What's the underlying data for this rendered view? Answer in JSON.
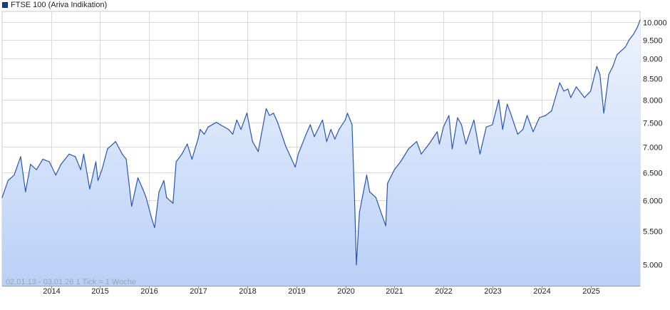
{
  "legend": {
    "label": "FTSE 100 (Ariva Indikation)",
    "color": "#1a3f8f"
  },
  "footer_note": "02.01.13 - 03.01.26    1 Tick = 1 Woche",
  "chart_data": {
    "type": "area",
    "title": "",
    "xlabel": "",
    "ylabel": "",
    "y_scale": "log",
    "ylim": [
      4700,
      10300
    ],
    "xlim": [
      "2013-01-02",
      "2026-01-03"
    ],
    "grid": true,
    "legend_position": "top-left",
    "colors": {
      "line": "#2856b6",
      "fill_top": "#eef4fe",
      "fill_bottom": "#b9d0f6"
    },
    "x_ticks": [
      {
        "date": "2014-01-01",
        "label": "2014"
      },
      {
        "date": "2015-01-01",
        "label": "2015"
      },
      {
        "date": "2016-01-01",
        "label": "2016"
      },
      {
        "date": "2017-01-01",
        "label": "2017"
      },
      {
        "date": "2018-01-01",
        "label": "2018"
      },
      {
        "date": "2019-01-01",
        "label": "2019"
      },
      {
        "date": "2020-01-01",
        "label": "2020"
      },
      {
        "date": "2021-01-01",
        "label": "2021"
      },
      {
        "date": "2022-01-01",
        "label": "2022"
      },
      {
        "date": "2023-01-01",
        "label": "2023"
      },
      {
        "date": "2024-01-01",
        "label": "2024"
      },
      {
        "date": "2025-01-01",
        "label": "2025"
      }
    ],
    "y_ticks": [
      {
        "value": 5000,
        "label": "5.000"
      },
      {
        "value": 5500,
        "label": "5.500"
      },
      {
        "value": 6000,
        "label": "6.000"
      },
      {
        "value": 6500,
        "label": "6.500"
      },
      {
        "value": 7000,
        "label": "7.000"
      },
      {
        "value": 7500,
        "label": "7.500"
      },
      {
        "value": 8000,
        "label": "8.000"
      },
      {
        "value": 8500,
        "label": "8.500"
      },
      {
        "value": 9000,
        "label": "9.000"
      },
      {
        "value": 9500,
        "label": "9.500"
      },
      {
        "value": 10000,
        "label": "10.000"
      }
    ],
    "series": [
      {
        "points": [
          [
            "2013-01-02",
            6050
          ],
          [
            "2013-02-15",
            6350
          ],
          [
            "2013-04-01",
            6450
          ],
          [
            "2013-05-20",
            6800
          ],
          [
            "2013-06-25",
            6150
          ],
          [
            "2013-08-01",
            6650
          ],
          [
            "2013-09-15",
            6550
          ],
          [
            "2013-11-01",
            6750
          ],
          [
            "2013-12-20",
            6700
          ],
          [
            "2014-02-05",
            6450
          ],
          [
            "2014-03-15",
            6650
          ],
          [
            "2014-05-15",
            6850
          ],
          [
            "2014-07-01",
            6800
          ],
          [
            "2014-08-10",
            6550
          ],
          [
            "2014-09-01",
            6850
          ],
          [
            "2014-10-16",
            6200
          ],
          [
            "2014-12-01",
            6700
          ],
          [
            "2014-12-16",
            6350
          ],
          [
            "2015-01-15",
            6550
          ],
          [
            "2015-02-25",
            6950
          ],
          [
            "2015-04-27",
            7100
          ],
          [
            "2015-06-15",
            6850
          ],
          [
            "2015-07-15",
            6750
          ],
          [
            "2015-08-24",
            5900
          ],
          [
            "2015-10-10",
            6400
          ],
          [
            "2015-11-15",
            6200
          ],
          [
            "2015-12-10",
            6050
          ],
          [
            "2016-01-20",
            5700
          ],
          [
            "2016-02-11",
            5550
          ],
          [
            "2016-03-15",
            6150
          ],
          [
            "2016-04-20",
            6350
          ],
          [
            "2016-05-10",
            6050
          ],
          [
            "2016-06-27",
            5950
          ],
          [
            "2016-07-20",
            6700
          ],
          [
            "2016-09-01",
            6850
          ],
          [
            "2016-10-11",
            7050
          ],
          [
            "2016-11-15",
            6750
          ],
          [
            "2016-12-30",
            7150
          ],
          [
            "2017-01-15",
            7350
          ],
          [
            "2017-02-15",
            7250
          ],
          [
            "2017-03-15",
            7400
          ],
          [
            "2017-05-15",
            7500
          ],
          [
            "2017-06-15",
            7450
          ],
          [
            "2017-08-15",
            7350
          ],
          [
            "2017-09-15",
            7250
          ],
          [
            "2017-10-15",
            7550
          ],
          [
            "2017-11-15",
            7350
          ],
          [
            "2017-12-29",
            7700
          ],
          [
            "2018-02-09",
            7100
          ],
          [
            "2018-03-23",
            6900
          ],
          [
            "2018-05-22",
            7800
          ],
          [
            "2018-06-15",
            7650
          ],
          [
            "2018-07-15",
            7700
          ],
          [
            "2018-08-15",
            7500
          ],
          [
            "2018-10-15",
            7000
          ],
          [
            "2018-12-24",
            6600
          ],
          [
            "2019-01-15",
            6850
          ],
          [
            "2019-03-15",
            7250
          ],
          [
            "2019-04-15",
            7450
          ],
          [
            "2019-05-15",
            7200
          ],
          [
            "2019-07-15",
            7550
          ],
          [
            "2019-08-15",
            7100
          ],
          [
            "2019-09-15",
            7350
          ],
          [
            "2019-10-15",
            7150
          ],
          [
            "2019-11-15",
            7350
          ],
          [
            "2019-12-31",
            7550
          ],
          [
            "2020-01-17",
            7700
          ],
          [
            "2020-02-20",
            7450
          ],
          [
            "2020-03-10",
            6000
          ],
          [
            "2020-03-23",
            4990
          ],
          [
            "2020-04-15",
            5800
          ],
          [
            "2020-06-08",
            6450
          ],
          [
            "2020-06-30",
            6150
          ],
          [
            "2020-08-15",
            6050
          ],
          [
            "2020-10-28",
            5580
          ],
          [
            "2020-11-10",
            6300
          ],
          [
            "2020-12-31",
            6550
          ],
          [
            "2021-02-15",
            6700
          ],
          [
            "2021-04-15",
            6950
          ],
          [
            "2021-06-15",
            7100
          ],
          [
            "2021-07-19",
            6850
          ],
          [
            "2021-09-15",
            7050
          ],
          [
            "2021-11-15",
            7300
          ],
          [
            "2021-12-01",
            7050
          ],
          [
            "2021-12-31",
            7400
          ],
          [
            "2022-02-10",
            7650
          ],
          [
            "2022-03-07",
            6950
          ],
          [
            "2022-04-15",
            7600
          ],
          [
            "2022-05-15",
            7450
          ],
          [
            "2022-06-16",
            7050
          ],
          [
            "2022-08-15",
            7550
          ],
          [
            "2022-09-29",
            6850
          ],
          [
            "2022-11-15",
            7400
          ],
          [
            "2022-12-31",
            7450
          ],
          [
            "2023-02-16",
            8000
          ],
          [
            "2023-03-17",
            7350
          ],
          [
            "2023-04-20",
            7900
          ],
          [
            "2023-05-15",
            7700
          ],
          [
            "2023-07-07",
            7250
          ],
          [
            "2023-08-15",
            7350
          ],
          [
            "2023-09-15",
            7650
          ],
          [
            "2023-10-30",
            7300
          ],
          [
            "2023-12-15",
            7600
          ],
          [
            "2024-01-31",
            7650
          ],
          [
            "2024-03-15",
            7750
          ],
          [
            "2024-05-15",
            8400
          ],
          [
            "2024-06-15",
            8200
          ],
          [
            "2024-07-15",
            8250
          ],
          [
            "2024-08-05",
            8050
          ],
          [
            "2024-09-15",
            8300
          ],
          [
            "2024-11-15",
            8050
          ],
          [
            "2024-12-31",
            8200
          ],
          [
            "2025-02-15",
            8800
          ],
          [
            "2025-03-10",
            8600
          ],
          [
            "2025-04-08",
            7700
          ],
          [
            "2025-05-15",
            8600
          ],
          [
            "2025-06-15",
            8800
          ],
          [
            "2025-07-15",
            9100
          ],
          [
            "2025-08-15",
            9200
          ],
          [
            "2025-09-15",
            9300
          ],
          [
            "2025-10-15",
            9500
          ],
          [
            "2025-11-15",
            9650
          ],
          [
            "2025-12-15",
            9850
          ],
          [
            "2026-01-03",
            10050
          ]
        ]
      }
    ]
  }
}
